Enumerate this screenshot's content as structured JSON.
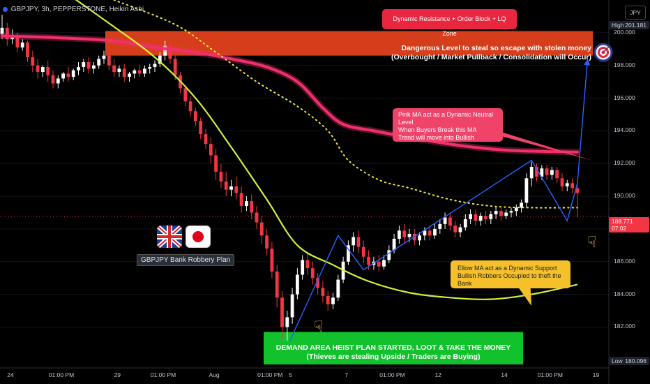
{
  "header": {
    "symbol_line": "GBPJPY, 3h, PEPPERSTONE, Heikin Ashi",
    "currency_button": "JPY"
  },
  "axis": {
    "price_ticks": [
      "200.000",
      "198.000",
      "196.000",
      "194.000",
      "192.000",
      "190.000",
      "188.000",
      "186.000",
      "184.000",
      "182.000"
    ],
    "high_label": "High",
    "high_value": "201.181",
    "low_label": "Low",
    "low_value": "180.096",
    "current_price": "188.771",
    "countdown": "07:02",
    "time_ticks": [
      "24",
      "01:00 PM",
      "29",
      "01:00 PM",
      "Aug",
      "01:00 PM",
      "5",
      "7",
      "01:00 PM",
      "12",
      "14",
      "01:00 PM",
      "19"
    ]
  },
  "annotations": {
    "resistance_title": "Dynamic Resistance + Order Block + LQ Zone",
    "zone_line1": "Dangerous Level to steal so escape with stolen money",
    "zone_line2": "(Overbought / Market Pullback / Consolidation will Occur)",
    "pink_line1": "Pink MA act as a Dynamic Neutral Level",
    "pink_line2": "When Buyers Break this MA",
    "pink_line3": "Trend will move into Bullish",
    "yellow_line1": "Ellow MA act as a Dynamic Support",
    "yellow_line2": "Bullish Robbers Occupied to theft the Bank",
    "green_line1": "DEMAND AREA HEIST PLAN STARTED, LOOT & TAKE THE MONEY",
    "green_line2": "(Thieves are stealing Upside / Traders are Buying)",
    "plan_label": "GBPJPY Bank Robbery Plan"
  },
  "colors": {
    "background": "#000000",
    "bull_candle": "#ffffff",
    "bear_candle": "#f23645",
    "pink_ma": "#f0306a",
    "yellow_ma": "#d4f03a",
    "dotted_ma": "#f5e642",
    "zone_red": "#e8431d",
    "projection_line": "#2962ff"
  },
  "chart_data": {
    "type": "candlestick",
    "ylim": [
      179.5,
      202.0
    ],
    "x_unit": "bar index (3h bars, Jul 24 – Aug 19)",
    "candles": [
      {
        "x": 0,
        "o": 199.9,
        "h": 201.1,
        "c": 200.3,
        "l": 199.6
      },
      {
        "x": 1,
        "o": 200.3,
        "h": 200.6,
        "c": 199.6,
        "l": 199.2
      },
      {
        "x": 2,
        "o": 199.6,
        "h": 200.2,
        "c": 199.8,
        "l": 199.3
      },
      {
        "x": 3,
        "o": 199.8,
        "h": 200.0,
        "c": 199.1,
        "l": 198.8
      },
      {
        "x": 4,
        "o": 199.1,
        "h": 199.6,
        "c": 199.4,
        "l": 198.9
      },
      {
        "x": 5,
        "o": 199.4,
        "h": 199.5,
        "c": 198.5,
        "l": 198.2
      },
      {
        "x": 6,
        "o": 198.5,
        "h": 198.9,
        "c": 198.0,
        "l": 197.6
      },
      {
        "x": 7,
        "o": 198.0,
        "h": 198.4,
        "c": 197.6,
        "l": 197.2
      },
      {
        "x": 8,
        "o": 197.6,
        "h": 198.0,
        "c": 197.9,
        "l": 197.3
      },
      {
        "x": 9,
        "o": 197.9,
        "h": 198.3,
        "c": 197.4,
        "l": 197.0
      },
      {
        "x": 10,
        "o": 197.4,
        "h": 197.7,
        "c": 196.9,
        "l": 196.6
      },
      {
        "x": 11,
        "o": 196.9,
        "h": 197.4,
        "c": 197.2,
        "l": 196.6
      },
      {
        "x": 12,
        "o": 197.2,
        "h": 197.6,
        "c": 197.5,
        "l": 197.0
      },
      {
        "x": 13,
        "o": 197.5,
        "h": 197.9,
        "c": 197.3,
        "l": 197.0
      },
      {
        "x": 14,
        "o": 197.3,
        "h": 197.8,
        "c": 197.7,
        "l": 197.1
      },
      {
        "x": 15,
        "o": 197.7,
        "h": 198.2,
        "c": 197.9,
        "l": 197.4
      },
      {
        "x": 16,
        "o": 197.9,
        "h": 198.4,
        "c": 198.2,
        "l": 197.6
      },
      {
        "x": 17,
        "o": 198.2,
        "h": 198.5,
        "c": 197.8,
        "l": 197.5
      },
      {
        "x": 18,
        "o": 197.8,
        "h": 198.2,
        "c": 198.0,
        "l": 197.5
      },
      {
        "x": 19,
        "o": 198.0,
        "h": 198.6,
        "c": 198.4,
        "l": 197.8
      },
      {
        "x": 20,
        "o": 198.4,
        "h": 198.9,
        "c": 198.6,
        "l": 198.1
      },
      {
        "x": 21,
        "o": 198.6,
        "h": 198.8,
        "c": 198.0,
        "l": 197.7
      },
      {
        "x": 22,
        "o": 198.0,
        "h": 198.4,
        "c": 197.6,
        "l": 197.3
      },
      {
        "x": 23,
        "o": 197.6,
        "h": 198.0,
        "c": 197.8,
        "l": 197.3
      },
      {
        "x": 24,
        "o": 197.8,
        "h": 198.1,
        "c": 197.3,
        "l": 197.0
      },
      {
        "x": 25,
        "o": 197.3,
        "h": 197.6,
        "c": 197.5,
        "l": 197.0
      },
      {
        "x": 26,
        "o": 197.5,
        "h": 197.8,
        "c": 197.7,
        "l": 197.2
      },
      {
        "x": 27,
        "o": 197.7,
        "h": 198.0,
        "c": 197.5,
        "l": 197.3
      },
      {
        "x": 28,
        "o": 197.5,
        "h": 198.0,
        "c": 197.8,
        "l": 197.3
      },
      {
        "x": 29,
        "o": 197.8,
        "h": 198.1,
        "c": 197.9,
        "l": 197.5
      },
      {
        "x": 30,
        "o": 197.9,
        "h": 198.3,
        "c": 198.1,
        "l": 197.6
      },
      {
        "x": 31,
        "o": 198.1,
        "h": 198.8,
        "c": 198.6,
        "l": 197.9
      },
      {
        "x": 32,
        "o": 198.6,
        "h": 199.5,
        "c": 199.2,
        "l": 198.3
      },
      {
        "x": 33,
        "o": 199.2,
        "h": 199.4,
        "c": 198.4,
        "l": 198.1
      },
      {
        "x": 34,
        "o": 198.4,
        "h": 198.6,
        "c": 197.4,
        "l": 197.1
      },
      {
        "x": 35,
        "o": 197.4,
        "h": 197.6,
        "c": 196.6,
        "l": 196.3
      },
      {
        "x": 36,
        "o": 196.6,
        "h": 196.8,
        "c": 195.8,
        "l": 195.5
      },
      {
        "x": 37,
        "o": 195.8,
        "h": 196.1,
        "c": 195.2,
        "l": 194.9
      },
      {
        "x": 38,
        "o": 195.2,
        "h": 195.4,
        "c": 194.6,
        "l": 194.3
      },
      {
        "x": 39,
        "o": 194.6,
        "h": 194.8,
        "c": 193.8,
        "l": 193.5
      },
      {
        "x": 40,
        "o": 193.8,
        "h": 194.1,
        "c": 193.2,
        "l": 192.9
      },
      {
        "x": 41,
        "o": 193.2,
        "h": 193.6,
        "c": 192.5,
        "l": 192.0
      },
      {
        "x": 42,
        "o": 192.5,
        "h": 192.9,
        "c": 191.5,
        "l": 191.0
      },
      {
        "x": 43,
        "o": 191.5,
        "h": 192.0,
        "c": 190.9,
        "l": 190.5
      },
      {
        "x": 44,
        "o": 190.9,
        "h": 191.5,
        "c": 190.4,
        "l": 190.0
      },
      {
        "x": 45,
        "o": 190.4,
        "h": 191.0,
        "c": 190.6,
        "l": 190.0
      },
      {
        "x": 46,
        "o": 190.6,
        "h": 191.2,
        "c": 190.2,
        "l": 189.8
      },
      {
        "x": 47,
        "o": 190.2,
        "h": 190.6,
        "c": 189.4,
        "l": 189.0
      },
      {
        "x": 48,
        "o": 189.4,
        "h": 190.0,
        "c": 189.7,
        "l": 189.1
      },
      {
        "x": 49,
        "o": 189.7,
        "h": 190.1,
        "c": 189.0,
        "l": 188.6
      },
      {
        "x": 50,
        "o": 189.0,
        "h": 189.4,
        "c": 188.4,
        "l": 188.0
      },
      {
        "x": 51,
        "o": 188.4,
        "h": 188.8,
        "c": 187.6,
        "l": 187.1
      },
      {
        "x": 52,
        "o": 187.6,
        "h": 188.0,
        "c": 186.8,
        "l": 186.4
      },
      {
        "x": 53,
        "o": 186.8,
        "h": 187.2,
        "c": 185.4,
        "l": 185.0
      },
      {
        "x": 54,
        "o": 185.4,
        "h": 185.8,
        "c": 183.8,
        "l": 183.2
      },
      {
        "x": 55,
        "o": 183.8,
        "h": 184.2,
        "c": 182.0,
        "l": 181.2
      },
      {
        "x": 56,
        "o": 182.0,
        "h": 183.0,
        "c": 182.6,
        "l": 180.1
      },
      {
        "x": 57,
        "o": 182.6,
        "h": 184.4,
        "c": 184.0,
        "l": 182.2
      },
      {
        "x": 58,
        "o": 184.0,
        "h": 185.6,
        "c": 185.2,
        "l": 183.7
      },
      {
        "x": 59,
        "o": 185.2,
        "h": 186.4,
        "c": 186.1,
        "l": 184.9
      },
      {
        "x": 60,
        "o": 186.1,
        "h": 186.6,
        "c": 185.6,
        "l": 185.2
      },
      {
        "x": 61,
        "o": 185.6,
        "h": 186.0,
        "c": 185.0,
        "l": 184.6
      },
      {
        "x": 62,
        "o": 185.0,
        "h": 185.3,
        "c": 184.4,
        "l": 184.0
      },
      {
        "x": 63,
        "o": 184.4,
        "h": 184.8,
        "c": 183.9,
        "l": 183.5
      },
      {
        "x": 64,
        "o": 183.9,
        "h": 184.2,
        "c": 183.4,
        "l": 183.0
      },
      {
        "x": 65,
        "o": 183.4,
        "h": 184.1,
        "c": 183.8,
        "l": 183.1
      },
      {
        "x": 66,
        "o": 183.8,
        "h": 185.2,
        "c": 184.9,
        "l": 183.6
      },
      {
        "x": 67,
        "o": 184.9,
        "h": 186.3,
        "c": 186.0,
        "l": 184.7
      },
      {
        "x": 68,
        "o": 186.0,
        "h": 187.3,
        "c": 187.0,
        "l": 185.8
      },
      {
        "x": 69,
        "o": 187.0,
        "h": 187.8,
        "c": 187.5,
        "l": 186.6
      },
      {
        "x": 70,
        "o": 187.5,
        "h": 187.9,
        "c": 186.9,
        "l": 186.5
      },
      {
        "x": 71,
        "o": 186.9,
        "h": 187.3,
        "c": 186.3,
        "l": 185.9
      },
      {
        "x": 72,
        "o": 186.3,
        "h": 186.7,
        "c": 185.8,
        "l": 185.5
      },
      {
        "x": 73,
        "o": 185.8,
        "h": 186.3,
        "c": 186.0,
        "l": 185.5
      },
      {
        "x": 74,
        "o": 186.0,
        "h": 186.4,
        "c": 185.7,
        "l": 185.4
      },
      {
        "x": 75,
        "o": 185.7,
        "h": 186.4,
        "c": 186.1,
        "l": 185.5
      },
      {
        "x": 76,
        "o": 186.1,
        "h": 187.0,
        "c": 186.7,
        "l": 185.9
      },
      {
        "x": 77,
        "o": 186.7,
        "h": 187.7,
        "c": 187.4,
        "l": 186.5
      },
      {
        "x": 78,
        "o": 187.4,
        "h": 188.2,
        "c": 187.9,
        "l": 187.1
      },
      {
        "x": 79,
        "o": 187.9,
        "h": 188.3,
        "c": 187.5,
        "l": 187.1
      },
      {
        "x": 80,
        "o": 187.5,
        "h": 188.0,
        "c": 187.7,
        "l": 187.2
      },
      {
        "x": 81,
        "o": 187.7,
        "h": 188.0,
        "c": 187.3,
        "l": 187.0
      },
      {
        "x": 82,
        "o": 187.3,
        "h": 187.8,
        "c": 187.6,
        "l": 187.0
      },
      {
        "x": 83,
        "o": 187.6,
        "h": 188.1,
        "c": 187.9,
        "l": 187.3
      },
      {
        "x": 84,
        "o": 187.9,
        "h": 188.2,
        "c": 187.6,
        "l": 187.3
      },
      {
        "x": 85,
        "o": 187.6,
        "h": 188.3,
        "c": 188.0,
        "l": 187.4
      },
      {
        "x": 86,
        "o": 188.0,
        "h": 188.6,
        "c": 188.3,
        "l": 187.7
      },
      {
        "x": 87,
        "o": 188.3,
        "h": 189.0,
        "c": 188.7,
        "l": 188.0
      },
      {
        "x": 88,
        "o": 188.7,
        "h": 189.0,
        "c": 188.2,
        "l": 187.9
      },
      {
        "x": 89,
        "o": 188.2,
        "h": 188.5,
        "c": 187.8,
        "l": 187.5
      },
      {
        "x": 90,
        "o": 187.8,
        "h": 188.3,
        "c": 188.1,
        "l": 187.5
      },
      {
        "x": 91,
        "o": 188.1,
        "h": 188.9,
        "c": 188.6,
        "l": 187.9
      },
      {
        "x": 92,
        "o": 188.6,
        "h": 189.2,
        "c": 188.9,
        "l": 188.3
      },
      {
        "x": 93,
        "o": 188.9,
        "h": 189.2,
        "c": 188.5,
        "l": 188.2
      },
      {
        "x": 94,
        "o": 188.5,
        "h": 189.0,
        "c": 188.8,
        "l": 188.2
      },
      {
        "x": 95,
        "o": 188.8,
        "h": 189.1,
        "c": 188.6,
        "l": 188.3
      },
      {
        "x": 96,
        "o": 188.6,
        "h": 189.1,
        "c": 188.9,
        "l": 188.3
      },
      {
        "x": 97,
        "o": 188.9,
        "h": 189.4,
        "c": 189.1,
        "l": 188.6
      },
      {
        "x": 98,
        "o": 189.1,
        "h": 189.3,
        "c": 188.8,
        "l": 188.5
      },
      {
        "x": 99,
        "o": 188.8,
        "h": 189.2,
        "c": 189.0,
        "l": 188.6
      },
      {
        "x": 100,
        "o": 189.0,
        "h": 189.3,
        "c": 189.1,
        "l": 188.7
      },
      {
        "x": 101,
        "o": 189.1,
        "h": 189.5,
        "c": 189.3,
        "l": 188.8
      },
      {
        "x": 102,
        "o": 189.3,
        "h": 189.8,
        "c": 189.6,
        "l": 189.0
      },
      {
        "x": 103,
        "o": 189.6,
        "h": 191.4,
        "c": 191.1,
        "l": 189.3
      },
      {
        "x": 104,
        "o": 191.1,
        "h": 192.1,
        "c": 191.8,
        "l": 190.6
      },
      {
        "x": 105,
        "o": 191.8,
        "h": 192.0,
        "c": 191.2,
        "l": 190.9
      },
      {
        "x": 106,
        "o": 191.2,
        "h": 191.9,
        "c": 191.7,
        "l": 191.0
      },
      {
        "x": 107,
        "o": 191.7,
        "h": 191.9,
        "c": 191.3,
        "l": 191.0
      },
      {
        "x": 108,
        "o": 191.3,
        "h": 191.8,
        "c": 191.6,
        "l": 191.0
      },
      {
        "x": 109,
        "o": 191.6,
        "h": 191.8,
        "c": 191.1,
        "l": 190.8
      },
      {
        "x": 110,
        "o": 191.1,
        "h": 191.4,
        "c": 190.6,
        "l": 190.3
      },
      {
        "x": 111,
        "o": 190.6,
        "h": 191.0,
        "c": 190.8,
        "l": 190.3
      },
      {
        "x": 112,
        "o": 190.8,
        "h": 191.1,
        "c": 190.5,
        "l": 190.2
      },
      {
        "x": 113,
        "o": 190.5,
        "h": 191.0,
        "c": 190.2,
        "l": 188.7
      }
    ],
    "series": [
      {
        "name": "Pink MA",
        "values": [
          [
            0,
            199.8
          ],
          [
            10,
            199.7
          ],
          [
            22,
            199.5
          ],
          [
            30,
            199.1
          ],
          [
            38,
            198.8
          ],
          [
            45,
            198.4
          ],
          [
            52,
            197.9
          ],
          [
            58,
            197.0
          ],
          [
            63,
            195.4
          ],
          [
            67,
            194.4
          ],
          [
            73,
            194.0
          ],
          [
            80,
            193.6
          ],
          [
            90,
            193.1
          ],
          [
            100,
            192.8
          ],
          [
            113,
            192.7
          ]
        ]
      },
      {
        "name": "Yellow MA",
        "values": [
          [
            10,
            203.0
          ],
          [
            20,
            200.8
          ],
          [
            30,
            198.5
          ],
          [
            38,
            196.0
          ],
          [
            45,
            193.0
          ],
          [
            52,
            189.8
          ],
          [
            58,
            187.0
          ],
          [
            65,
            185.8
          ],
          [
            72,
            184.8
          ],
          [
            80,
            184.1
          ],
          [
            88,
            183.8
          ],
          [
            96,
            183.7
          ],
          [
            104,
            184.0
          ],
          [
            113,
            184.6
          ]
        ]
      },
      {
        "name": "Dotted MA",
        "values": [
          [
            22,
            202.0
          ],
          [
            34,
            200.5
          ],
          [
            42,
            198.8
          ],
          [
            50,
            197.0
          ],
          [
            58,
            195.5
          ],
          [
            64,
            194.0
          ],
          [
            68,
            192.2
          ],
          [
            74,
            191.0
          ],
          [
            80,
            190.5
          ],
          [
            88,
            189.8
          ],
          [
            96,
            189.4
          ],
          [
            104,
            189.3
          ],
          [
            113,
            189.3
          ]
        ]
      }
    ],
    "projection": [
      [
        56,
        180.8
      ],
      [
        66,
        187.6
      ],
      [
        71,
        185.5
      ],
      [
        104,
        192.2
      ],
      [
        111,
        188.5
      ],
      [
        113,
        190.8
      ],
      [
        115,
        198.4
      ]
    ],
    "levels": {
      "current": 188.771,
      "zone_top": 200.1,
      "zone_bottom": 198.6,
      "demand_top": 181.7,
      "demand_bottom": 179.5
    }
  }
}
